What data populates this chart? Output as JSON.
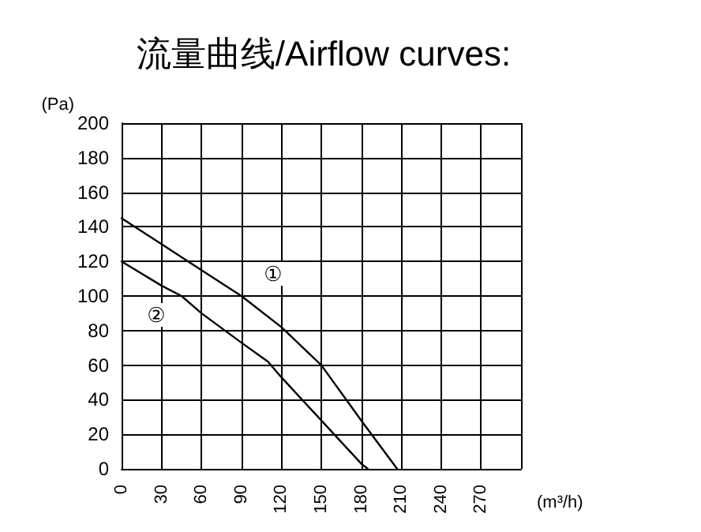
{
  "chart_data": {
    "type": "line",
    "title": "流量曲线/Airflow curves:",
    "xlabel": "(m³/h)",
    "ylabel": "(Pa)",
    "series": [
      {
        "name": "①",
        "color": "#000000",
        "x": [
          0,
          30,
          60,
          90,
          120,
          150,
          180,
          207
        ],
        "values": [
          145,
          130,
          115,
          100,
          82,
          60,
          28,
          0
        ]
      },
      {
        "name": "②",
        "color": "#000000",
        "x": [
          0,
          30,
          45,
          60,
          90,
          110,
          120,
          150,
          180,
          185
        ],
        "values": [
          120,
          106,
          100,
          90,
          73,
          62,
          53,
          28,
          3,
          0
        ]
      }
    ],
    "xlim": [
      0,
      300
    ],
    "xticks": [
      0,
      30,
      60,
      90,
      120,
      150,
      180,
      210,
      240,
      270,
      {
        "value": 300,
        "label": null
      }
    ],
    "ylim": [
      0,
      200
    ],
    "yticks": [
      0,
      20,
      40,
      60,
      80,
      100,
      120,
      140,
      160,
      180,
      200
    ],
    "grid": true,
    "legend": false,
    "marker": "none",
    "line_style": "solid"
  }
}
